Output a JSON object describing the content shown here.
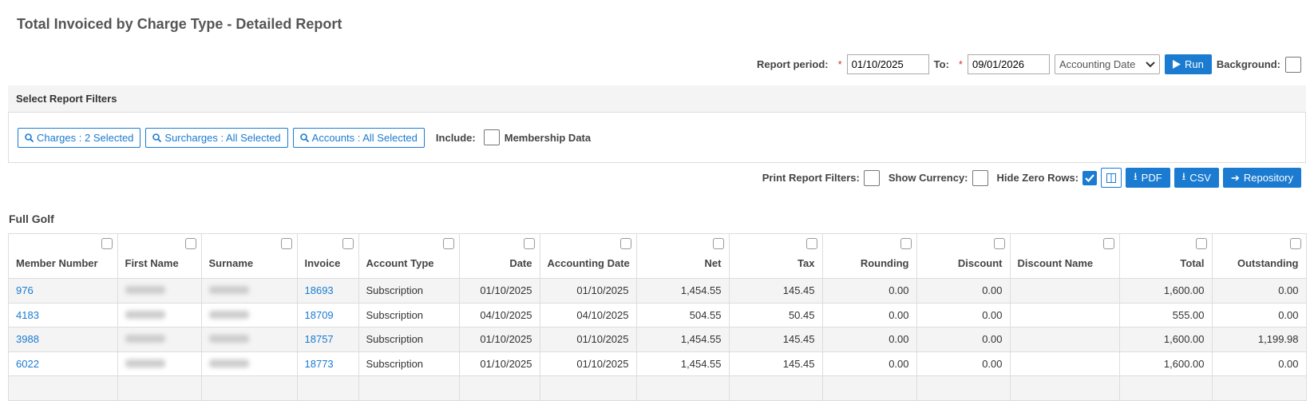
{
  "header": {
    "title": "Total Invoiced by Charge Type - Detailed Report"
  },
  "report_period": {
    "label": "Report period:",
    "from": "01/10/2025",
    "to_label": "To:",
    "to": "09/01/2026",
    "date_type": "Accounting Date",
    "run": "Run",
    "background": "Background:"
  },
  "filters": {
    "title": "Select Report Filters",
    "buttons": [
      "Charges : 2 Selected",
      "Surcharges : All Selected",
      "Accounts : All Selected"
    ],
    "include": "Include:",
    "membership": "Membership Data"
  },
  "options": {
    "print_filters": "Print Report Filters:",
    "show_currency": "Show Currency:",
    "hide_zero": "Hide Zero Rows:",
    "pdf": "PDF",
    "csv": "CSV",
    "repository": "Repository"
  },
  "section": "Full Golf",
  "table": {
    "columns": [
      "Member Number",
      "First Name",
      "Surname",
      "Invoice",
      "Account Type",
      "Date",
      "Accounting Date",
      "Net",
      "Tax",
      "Rounding",
      "Discount",
      "Discount Name",
      "Total",
      "Outstanding"
    ],
    "rows": [
      [
        "976",
        null,
        null,
        "18693",
        "Subscription",
        "01/10/2025",
        "01/10/2025",
        "1,454.55",
        "145.45",
        "0.00",
        "0.00",
        null,
        "1,600.00",
        "0.00"
      ],
      [
        "4183",
        null,
        null,
        "18709",
        "Subscription",
        "04/10/2025",
        "04/10/2025",
        "504.55",
        "50.45",
        "0.00",
        "0.00",
        null,
        "555.00",
        "0.00"
      ],
      [
        "3988",
        null,
        null,
        "18757",
        "Subscription",
        "01/10/2025",
        "01/10/2025",
        "1,454.55",
        "145.45",
        "0.00",
        "0.00",
        null,
        "1,600.00",
        "1,199.98"
      ],
      [
        "6022",
        null,
        null,
        "18773",
        "Subscription",
        "01/10/2025",
        "01/10/2025",
        "1,454.55",
        "145.45",
        "0.00",
        "0.00",
        null,
        "1,600.00",
        "0.00"
      ]
    ]
  }
}
